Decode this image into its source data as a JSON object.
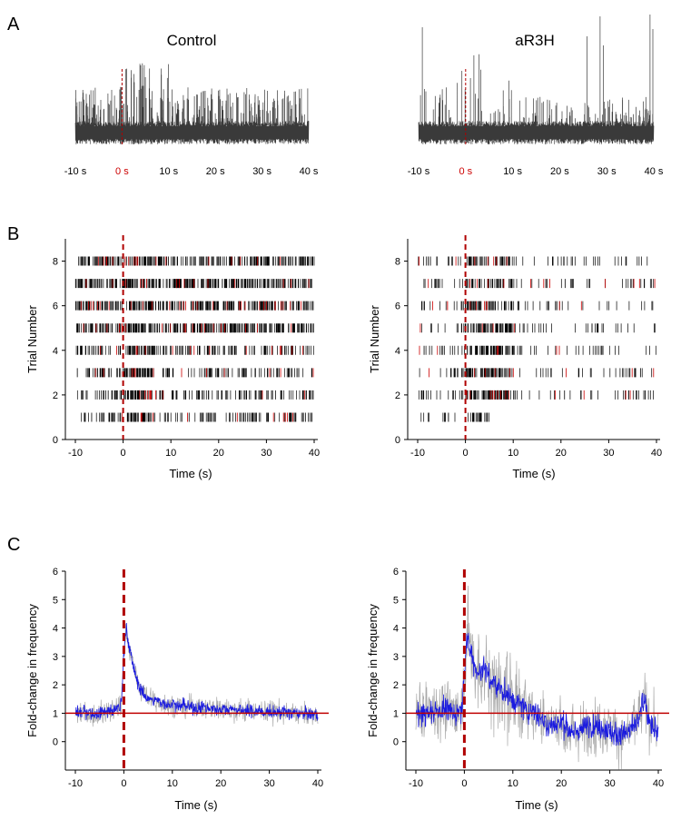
{
  "panel_labels": [
    "A",
    "B",
    "C"
  ],
  "colors": {
    "trace": "#3a3a3a",
    "spike": "#000000",
    "spike_highlight": "#cc0000",
    "stimulus_line": "#b00000",
    "mean_trace": "#1a1adf",
    "sem_band": "#a8a8a8",
    "baseline": "#c00000"
  },
  "conditions": [
    "Control",
    "aR3H"
  ],
  "chart_data": [
    {
      "panel": "A",
      "type": "line",
      "title": "Control",
      "x_tick_labels": [
        "-10 s",
        "0 s",
        "10 s",
        "20 s",
        "30 s",
        "40 s"
      ],
      "x_ticks": [
        -10,
        0,
        10,
        20,
        30,
        40
      ],
      "xlim": [
        -10,
        40
      ],
      "stimulus_onset": 0,
      "highlight_tick": "0 s"
    },
    {
      "panel": "A",
      "type": "line",
      "title": "aR3H",
      "x_tick_labels": [
        "-10 s",
        "0 s",
        "10 s",
        "20 s",
        "30 s",
        "40 s"
      ],
      "x_ticks": [
        -10,
        0,
        10,
        20,
        30,
        40
      ],
      "xlim": [
        -10,
        40
      ],
      "stimulus_onset": 0,
      "highlight_tick": "0 s"
    },
    {
      "panel": "B",
      "type": "scatter",
      "condition": "Control",
      "xlabel": "Time (s)",
      "ylabel": "Trial Number",
      "xlim": [
        -11,
        41
      ],
      "ylim": [
        0,
        9
      ],
      "x_ticks": [
        -10,
        0,
        10,
        20,
        30,
        40
      ],
      "y_ticks": [
        0,
        2,
        4,
        6,
        8
      ],
      "trials": [
        1,
        2,
        3,
        4,
        5,
        6,
        7,
        8
      ],
      "stimulus_onset": 0
    },
    {
      "panel": "B",
      "type": "scatter",
      "condition": "aR3H",
      "xlabel": "Time (s)",
      "ylabel": "Trial Number",
      "xlim": [
        -11,
        41
      ],
      "ylim": [
        0,
        9
      ],
      "x_ticks": [
        -10,
        0,
        10,
        20,
        30,
        40
      ],
      "y_ticks": [
        0,
        2,
        4,
        6,
        8
      ],
      "trials": [
        1,
        2,
        3,
        4,
        5,
        6,
        7,
        8
      ],
      "stimulus_onset": 0
    },
    {
      "panel": "C",
      "type": "line",
      "condition": "Control",
      "xlabel": "Time (s)",
      "ylabel": "Fold-change in frequency",
      "xlim": [
        -10,
        40
      ],
      "ylim": [
        -1,
        6
      ],
      "x_ticks": [
        -10,
        0,
        10,
        20,
        30,
        40
      ],
      "y_ticks": [
        0,
        1,
        2,
        3,
        4,
        5,
        6
      ],
      "baseline": 1,
      "stimulus_onset": 0,
      "series": [
        {
          "x": [
            -10,
            -8,
            -6,
            -4,
            -2,
            -0.5,
            0,
            0.5,
            1,
            2,
            3,
            4,
            5,
            6,
            8,
            10,
            12,
            15,
            20,
            25,
            30,
            35,
            40
          ],
          "values": [
            1.0,
            1.05,
            0.95,
            1.05,
            1.1,
            1.3,
            3.2,
            4.0,
            3.4,
            2.6,
            2.0,
            1.7,
            1.55,
            1.45,
            1.35,
            1.3,
            1.25,
            1.2,
            1.15,
            1.1,
            1.05,
            1.0,
            0.95
          ]
        }
      ]
    },
    {
      "panel": "C",
      "type": "line",
      "condition": "aR3H",
      "xlabel": "Time (s)",
      "ylabel": "Fold-change in frequency",
      "xlim": [
        -10,
        40
      ],
      "ylim": [
        -1,
        6
      ],
      "x_ticks": [
        -10,
        0,
        10,
        20,
        30,
        40
      ],
      "y_ticks": [
        0,
        1,
        2,
        3,
        4,
        5,
        6
      ],
      "baseline": 1,
      "stimulus_onset": 0,
      "series": [
        {
          "x": [
            -10,
            -8,
            -6,
            -4,
            -2,
            -0.5,
            0,
            0.5,
            1,
            2,
            3,
            4,
            5,
            6,
            8,
            10,
            12,
            14,
            16,
            18,
            20,
            22,
            24,
            26,
            28,
            30,
            32,
            34,
            36,
            37,
            38,
            40
          ],
          "values": [
            1.0,
            1.0,
            1.1,
            1.15,
            1.0,
            1.2,
            2.5,
            3.6,
            3.4,
            2.7,
            2.4,
            2.6,
            2.3,
            2.0,
            1.8,
            1.5,
            1.2,
            1.1,
            0.8,
            0.6,
            0.7,
            0.3,
            0.4,
            0.6,
            0.5,
            0.4,
            0.2,
            0.35,
            0.8,
            1.5,
            0.8,
            0.3
          ]
        }
      ]
    }
  ]
}
